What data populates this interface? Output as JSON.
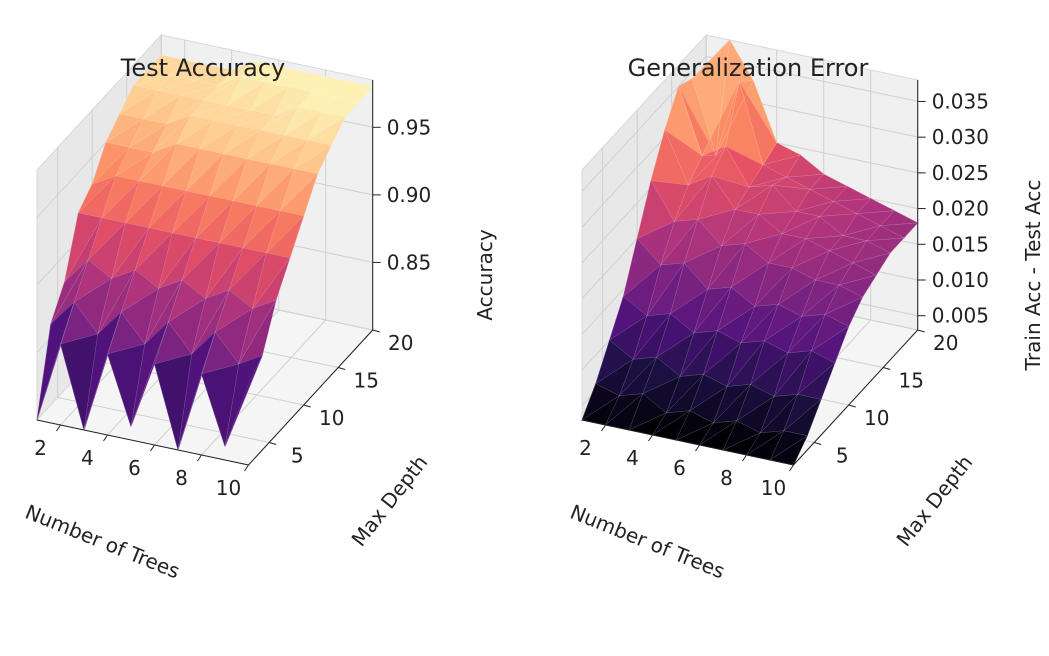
{
  "chart_data": [
    {
      "type": "surface3d",
      "title": "Test Accuracy",
      "xlabel": "Number of Trees",
      "ylabel": "Max Depth",
      "zlabel": "Accuracy",
      "x_ticks": [
        "2",
        "4",
        "6",
        "8",
        "10"
      ],
      "y_ticks": [
        "5",
        "10",
        "15",
        "20"
      ],
      "z_ticks": [
        "0.85",
        "0.90",
        "0.95"
      ],
      "zlim": [
        0.8,
        0.985
      ],
      "colormap": "magma",
      "x": [
        1,
        2,
        3,
        4,
        5,
        6,
        7,
        8,
        9,
        10
      ],
      "y": [
        2,
        4,
        6,
        8,
        10,
        12,
        14,
        16,
        18,
        20
      ],
      "z": [
        [
          0.8,
          0.86,
          0.8,
          0.86,
          0.81,
          0.86,
          0.8,
          0.86,
          0.81,
          0.86
        ],
        [
          0.86,
          0.88,
          0.86,
          0.88,
          0.86,
          0.88,
          0.86,
          0.88,
          0.86,
          0.87
        ],
        [
          0.88,
          0.9,
          0.89,
          0.9,
          0.89,
          0.9,
          0.89,
          0.9,
          0.89,
          0.9
        ],
        [
          0.92,
          0.92,
          0.92,
          0.92,
          0.92,
          0.92,
          0.92,
          0.92,
          0.92,
          0.92
        ],
        [
          0.93,
          0.94,
          0.94,
          0.94,
          0.94,
          0.94,
          0.94,
          0.94,
          0.94,
          0.94
        ],
        [
          0.95,
          0.95,
          0.95,
          0.96,
          0.96,
          0.96,
          0.96,
          0.96,
          0.96,
          0.96
        ],
        [
          0.96,
          0.96,
          0.96,
          0.97,
          0.97,
          0.97,
          0.97,
          0.97,
          0.97,
          0.97
        ],
        [
          0.97,
          0.97,
          0.97,
          0.97,
          0.97,
          0.97,
          0.97,
          0.98,
          0.98,
          0.98
        ],
        [
          0.97,
          0.97,
          0.97,
          0.97,
          0.98,
          0.98,
          0.98,
          0.98,
          0.98,
          0.98
        ],
        [
          0.97,
          0.97,
          0.97,
          0.97,
          0.98,
          0.98,
          0.98,
          0.98,
          0.98,
          0.98
        ]
      ]
    },
    {
      "type": "surface3d",
      "title": "Generalization Error",
      "xlabel": "Number of Trees",
      "ylabel": "Max Depth",
      "zlabel": "Train Acc - Test Acc",
      "x_ticks": [
        "2",
        "4",
        "6",
        "8",
        "10"
      ],
      "y_ticks": [
        "5",
        "10",
        "15",
        "20"
      ],
      "z_ticks": [
        "0.005",
        "0.010",
        "0.015",
        "0.020",
        "0.025",
        "0.030",
        "0.035"
      ],
      "zlim": [
        0.003,
        0.038
      ],
      "colormap": "magma",
      "x": [
        1,
        2,
        3,
        4,
        5,
        6,
        7,
        8,
        9,
        10
      ],
      "y": [
        2,
        4,
        6,
        8,
        10,
        12,
        14,
        16,
        18,
        20
      ],
      "z": [
        [
          0.003,
          0.003,
          0.003,
          0.002,
          0.002,
          0.002,
          0.002,
          0.002,
          0.003,
          0.003
        ],
        [
          0.006,
          0.005,
          0.006,
          0.004,
          0.005,
          0.004,
          0.005,
          0.004,
          0.005,
          0.005
        ],
        [
          0.01,
          0.008,
          0.009,
          0.007,
          0.008,
          0.007,
          0.008,
          0.007,
          0.008,
          0.008
        ],
        [
          0.014,
          0.012,
          0.013,
          0.011,
          0.012,
          0.011,
          0.012,
          0.011,
          0.012,
          0.011
        ],
        [
          0.02,
          0.017,
          0.018,
          0.015,
          0.016,
          0.014,
          0.015,
          0.014,
          0.015,
          0.014
        ],
        [
          0.026,
          0.021,
          0.022,
          0.019,
          0.02,
          0.018,
          0.018,
          0.017,
          0.017,
          0.016
        ],
        [
          0.031,
          0.024,
          0.026,
          0.022,
          0.022,
          0.02,
          0.02,
          0.019,
          0.018,
          0.017
        ],
        [
          0.035,
          0.026,
          0.028,
          0.023,
          0.024,
          0.021,
          0.021,
          0.019,
          0.019,
          0.018
        ],
        [
          0.034,
          0.024,
          0.035,
          0.024,
          0.023,
          0.022,
          0.021,
          0.02,
          0.019,
          0.018
        ],
        [
          0.033,
          0.038,
          0.033,
          0.025,
          0.024,
          0.022,
          0.021,
          0.02,
          0.019,
          0.018
        ]
      ]
    }
  ]
}
